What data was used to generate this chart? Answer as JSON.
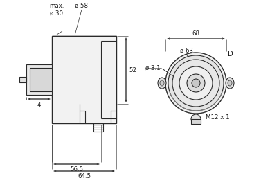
{
  "bg_color": "#ffffff",
  "line_color": "#2a2a2a",
  "dim_color": "#2a2a2a",
  "text_color": "#1a1a1a",
  "fig_width": 3.77,
  "fig_height": 2.6,
  "dpi": 100,
  "annotations": {
    "max_d30": "max.\nø 30",
    "d58": "ø 58",
    "d63": "ø 63",
    "d31": "ø 3.1",
    "dim68": "68",
    "dim56_5": "56.5",
    "dim64_5": "64.5",
    "dim52": "52",
    "dim4": "4",
    "m12": "M12 x 1",
    "D": "D"
  }
}
